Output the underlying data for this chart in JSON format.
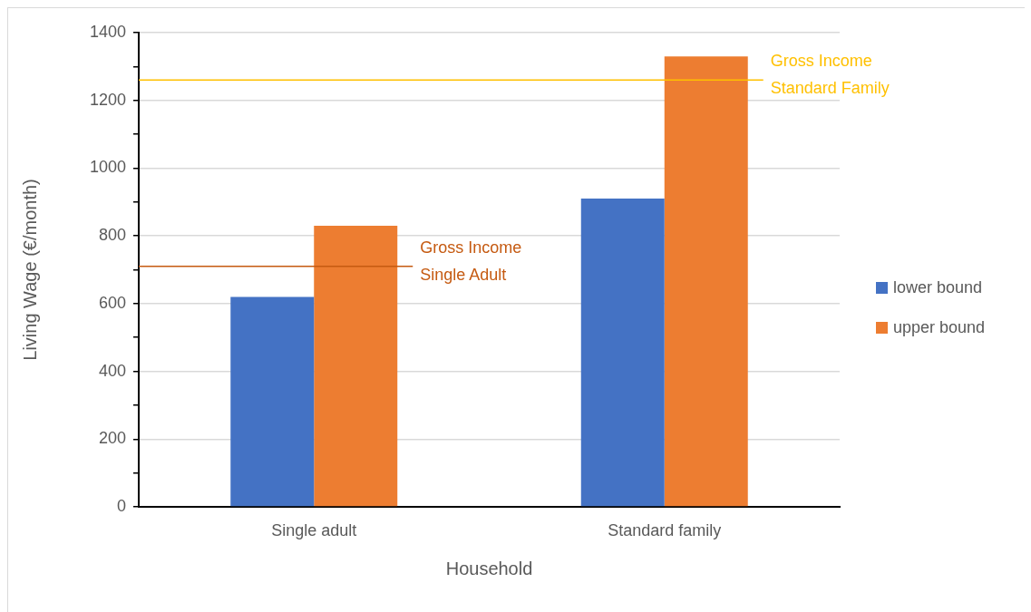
{
  "chart_data": {
    "type": "bar",
    "xlabel": "Household",
    "ylabel": "Living Wage (€/month)",
    "categories": [
      "Single adult",
      "Standard family"
    ],
    "series": [
      {
        "name": "lower bound",
        "color": "#4472c4",
        "values": [
          620,
          910
        ]
      },
      {
        "name": "upper bound",
        "color": "#ed7d31",
        "values": [
          830,
          1330
        ]
      }
    ],
    "ylim": [
      0,
      1400
    ],
    "yticks": [
      0,
      {
        "value": 100,
        "label": null
      },
      200,
      {
        "value": 300,
        "label": null
      },
      400,
      {
        "value": 500,
        "label": null
      },
      600,
      {
        "value": 700,
        "label": null
      },
      800,
      {
        "value": 900,
        "label": null
      },
      1000,
      {
        "value": 1100,
        "label": null
      },
      1200,
      {
        "value": 1300,
        "label": null
      },
      1400
    ],
    "ref_lines": [
      {
        "axis": "y",
        "value": 710,
        "label": "Gross Income Single Adult",
        "color": "#c55a11"
      },
      {
        "axis": "y",
        "value": 1260,
        "label": "Gross Income Standard Family",
        "color": "#ffc000"
      }
    ],
    "grid": "y",
    "legend": "right"
  }
}
